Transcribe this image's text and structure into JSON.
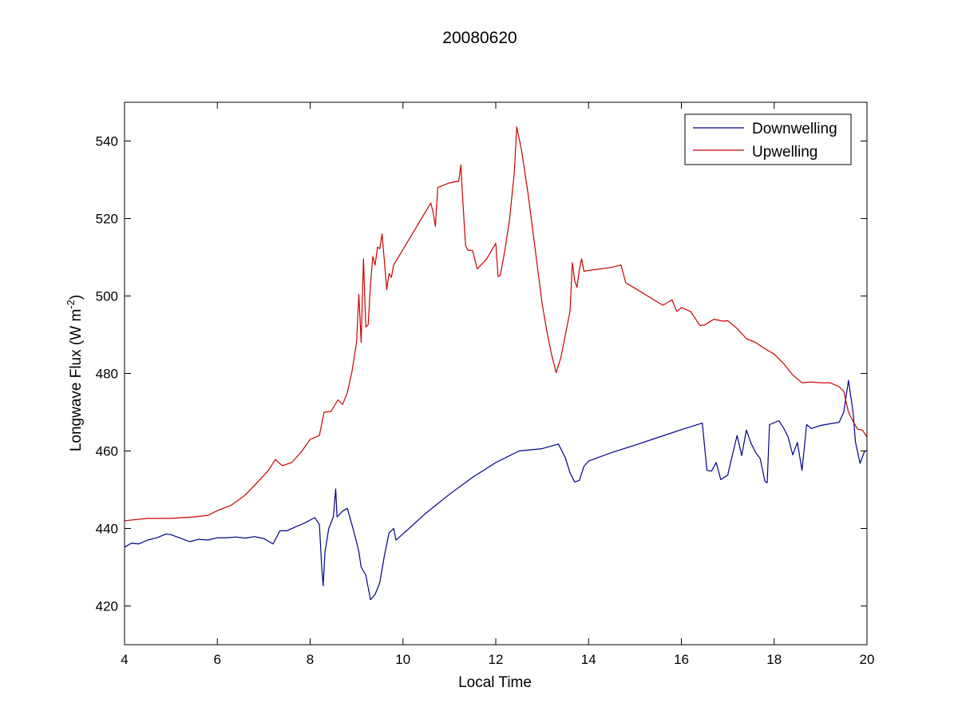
{
  "chart_data": {
    "type": "line",
    "title": "20080620",
    "xlabel": "Local Time",
    "ylabel": {
      "main": "Longwave Flux (W m",
      "sup": "-2",
      "close": ")"
    },
    "xlim": [
      4,
      20
    ],
    "ylim": [
      410,
      550
    ],
    "xticks": [
      4,
      6,
      8,
      10,
      12,
      14,
      16,
      18,
      20
    ],
    "yticks": [
      420,
      440,
      460,
      480,
      500,
      520,
      540
    ],
    "grid": false,
    "legend_position": "top-right",
    "series": [
      {
        "name": "Downwelling",
        "color": "#00008b",
        "points": [
          [
            4.0,
            435.2
          ],
          [
            4.15,
            436.2
          ],
          [
            4.3,
            436.0
          ],
          [
            4.5,
            437.0
          ],
          [
            4.7,
            437.6
          ],
          [
            4.9,
            438.6
          ],
          [
            5.0,
            438.4
          ],
          [
            5.2,
            437.5
          ],
          [
            5.4,
            436.6
          ],
          [
            5.6,
            437.2
          ],
          [
            5.8,
            437.0
          ],
          [
            6.0,
            437.6
          ],
          [
            6.2,
            437.6
          ],
          [
            6.4,
            437.8
          ],
          [
            6.6,
            437.5
          ],
          [
            6.8,
            437.9
          ],
          [
            7.0,
            437.4
          ],
          [
            7.2,
            436.0
          ],
          [
            7.35,
            439.4
          ],
          [
            7.5,
            439.4
          ],
          [
            7.7,
            440.5
          ],
          [
            7.9,
            441.5
          ],
          [
            8.1,
            442.8
          ],
          [
            8.2,
            441.0
          ],
          [
            8.25,
            430.0
          ],
          [
            8.28,
            425.2
          ],
          [
            8.32,
            434.0
          ],
          [
            8.4,
            440.0
          ],
          [
            8.5,
            443.0
          ],
          [
            8.55,
            450.2
          ],
          [
            8.58,
            443.0
          ],
          [
            8.7,
            444.5
          ],
          [
            8.8,
            445.2
          ],
          [
            8.9,
            441.0
          ],
          [
            9.0,
            436.5
          ],
          [
            9.05,
            434.0
          ],
          [
            9.1,
            430.0
          ],
          [
            9.2,
            428.0
          ],
          [
            9.3,
            421.6
          ],
          [
            9.4,
            423.0
          ],
          [
            9.5,
            426.0
          ],
          [
            9.6,
            433.0
          ],
          [
            9.7,
            438.8
          ],
          [
            9.8,
            440.0
          ],
          [
            9.85,
            437.0
          ],
          [
            9.9,
            437.5
          ],
          [
            10.5,
            444.0
          ],
          [
            11.0,
            448.8
          ],
          [
            11.5,
            453.2
          ],
          [
            12.0,
            457.0
          ],
          [
            12.5,
            460.0
          ],
          [
            13.0,
            460.6
          ],
          [
            13.35,
            461.8
          ],
          [
            13.5,
            458.2
          ],
          [
            13.6,
            454.4
          ],
          [
            13.7,
            452.0
          ],
          [
            13.8,
            452.4
          ],
          [
            13.9,
            456.0
          ],
          [
            14.0,
            457.4
          ],
          [
            14.5,
            459.6
          ],
          [
            15.0,
            461.5
          ],
          [
            15.5,
            463.5
          ],
          [
            16.0,
            465.5
          ],
          [
            16.45,
            467.2
          ],
          [
            16.55,
            455.0
          ],
          [
            16.65,
            454.8
          ],
          [
            16.75,
            457.0
          ],
          [
            16.85,
            452.6
          ],
          [
            17.0,
            453.8
          ],
          [
            17.1,
            459.0
          ],
          [
            17.2,
            464.0
          ],
          [
            17.3,
            458.8
          ],
          [
            17.4,
            465.4
          ],
          [
            17.5,
            462.0
          ],
          [
            17.6,
            459.6
          ],
          [
            17.7,
            458.0
          ],
          [
            17.8,
            452.2
          ],
          [
            17.85,
            451.8
          ],
          [
            17.9,
            466.8
          ],
          [
            18.1,
            467.8
          ],
          [
            18.2,
            466.0
          ],
          [
            18.3,
            463.6
          ],
          [
            18.4,
            459.0
          ],
          [
            18.5,
            462.2
          ],
          [
            18.6,
            455.0
          ],
          [
            18.7,
            466.8
          ],
          [
            18.8,
            465.8
          ],
          [
            19.0,
            466.6
          ],
          [
            19.2,
            467.0
          ],
          [
            19.4,
            467.4
          ],
          [
            19.5,
            470.0
          ],
          [
            19.6,
            478.2
          ],
          [
            19.7,
            470.0
          ],
          [
            19.75,
            462.4
          ],
          [
            19.85,
            456.8
          ],
          [
            19.95,
            460.0
          ],
          [
            20.0,
            460.0
          ]
        ]
      },
      {
        "name": "Upwelling",
        "color": "#cc0000",
        "points": [
          [
            4.0,
            442.0
          ],
          [
            4.5,
            442.6
          ],
          [
            5.0,
            442.6
          ],
          [
            5.5,
            443.0
          ],
          [
            5.8,
            443.4
          ],
          [
            6.0,
            444.6
          ],
          [
            6.3,
            446.0
          ],
          [
            6.6,
            448.6
          ],
          [
            6.9,
            452.4
          ],
          [
            7.1,
            455.0
          ],
          [
            7.25,
            457.8
          ],
          [
            7.4,
            456.2
          ],
          [
            7.6,
            457.0
          ],
          [
            7.8,
            459.6
          ],
          [
            8.0,
            463.0
          ],
          [
            8.2,
            464.0
          ],
          [
            8.3,
            470.0
          ],
          [
            8.45,
            470.2
          ],
          [
            8.6,
            473.2
          ],
          [
            8.7,
            472.0
          ],
          [
            8.8,
            475.0
          ],
          [
            8.9,
            480.4
          ],
          [
            9.0,
            488.0
          ],
          [
            9.05,
            500.4
          ],
          [
            9.1,
            488.0
          ],
          [
            9.15,
            509.6
          ],
          [
            9.2,
            492.0
          ],
          [
            9.25,
            492.6
          ],
          [
            9.3,
            503.0
          ],
          [
            9.35,
            510.2
          ],
          [
            9.4,
            508.0
          ],
          [
            9.45,
            512.6
          ],
          [
            9.5,
            512.2
          ],
          [
            9.55,
            516.0
          ],
          [
            9.6,
            509.0
          ],
          [
            9.65,
            501.6
          ],
          [
            9.7,
            505.8
          ],
          [
            9.75,
            504.8
          ],
          [
            9.8,
            508.0
          ],
          [
            10.0,
            512.0
          ],
          [
            10.3,
            518.0
          ],
          [
            10.6,
            524.0
          ],
          [
            10.65,
            521.6
          ],
          [
            10.7,
            518.0
          ],
          [
            10.75,
            528.0
          ],
          [
            11.0,
            529.2
          ],
          [
            11.2,
            529.6
          ],
          [
            11.25,
            533.8
          ],
          [
            11.28,
            526.6
          ],
          [
            11.35,
            513.0
          ],
          [
            11.4,
            511.8
          ],
          [
            11.5,
            511.8
          ],
          [
            11.6,
            507.0
          ],
          [
            11.8,
            509.5
          ],
          [
            12.0,
            513.6
          ],
          [
            12.05,
            505.0
          ],
          [
            12.1,
            505.4
          ],
          [
            12.2,
            512.0
          ],
          [
            12.3,
            520.0
          ],
          [
            12.4,
            532.0
          ],
          [
            12.45,
            543.6
          ],
          [
            12.55,
            538.0
          ],
          [
            12.7,
            526.0
          ],
          [
            12.85,
            512.0
          ],
          [
            13.0,
            498.0
          ],
          [
            13.1,
            491.0
          ],
          [
            13.2,
            485.0
          ],
          [
            13.3,
            480.2
          ],
          [
            13.4,
            484.0
          ],
          [
            13.5,
            490.0
          ],
          [
            13.6,
            496.0
          ],
          [
            13.65,
            508.6
          ],
          [
            13.7,
            504.0
          ],
          [
            13.75,
            502.2
          ],
          [
            13.8,
            506.6
          ],
          [
            13.85,
            509.6
          ],
          [
            13.9,
            506.4
          ],
          [
            14.0,
            506.6
          ],
          [
            14.5,
            507.4
          ],
          [
            14.7,
            508.0
          ],
          [
            14.8,
            503.4
          ],
          [
            15.0,
            502.0
          ],
          [
            15.3,
            499.8
          ],
          [
            15.6,
            497.6
          ],
          [
            15.8,
            499.0
          ],
          [
            15.9,
            496.0
          ],
          [
            16.0,
            497.0
          ],
          [
            16.2,
            496.0
          ],
          [
            16.4,
            492.4
          ],
          [
            16.5,
            492.5
          ],
          [
            16.7,
            494.0
          ],
          [
            16.9,
            493.5
          ],
          [
            17.0,
            493.6
          ],
          [
            17.2,
            491.6
          ],
          [
            17.4,
            489.0
          ],
          [
            17.6,
            488.0
          ],
          [
            17.8,
            486.4
          ],
          [
            18.0,
            485.0
          ],
          [
            18.2,
            482.6
          ],
          [
            18.4,
            479.6
          ],
          [
            18.6,
            477.6
          ],
          [
            18.8,
            477.8
          ],
          [
            19.0,
            477.6
          ],
          [
            19.2,
            477.6
          ],
          [
            19.4,
            476.6
          ],
          [
            19.5,
            475.4
          ],
          [
            19.6,
            470.0
          ],
          [
            19.7,
            467.6
          ],
          [
            19.8,
            465.6
          ],
          [
            19.9,
            465.4
          ],
          [
            20.0,
            463.6
          ]
        ]
      }
    ]
  }
}
